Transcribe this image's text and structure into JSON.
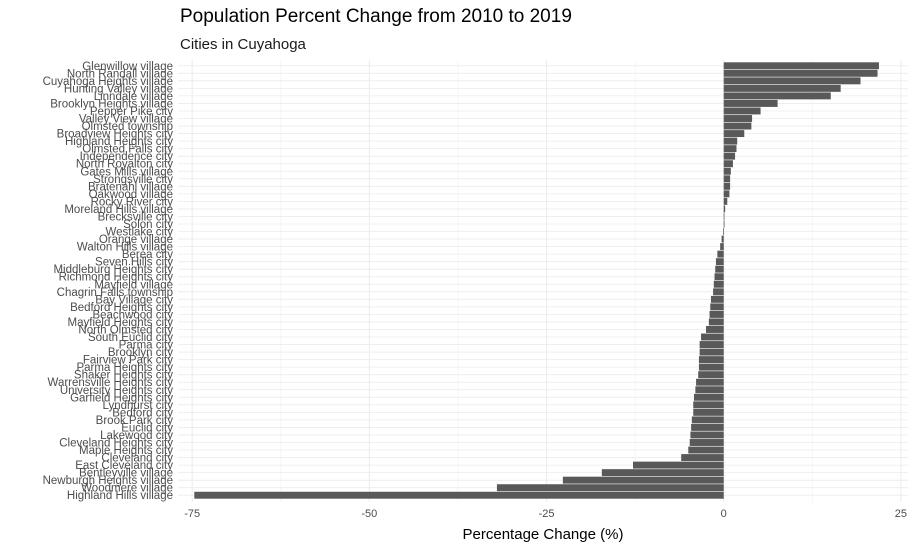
{
  "chart_data": {
    "type": "bar",
    "orientation": "horizontal",
    "title": "Population Percent Change from 2010 to 2019",
    "subtitle": "Cities in Cuyahoga",
    "xlabel": "Percentage Change (%)",
    "ylabel": "",
    "xlim": [
      -77,
      26
    ],
    "xticks": [
      -75,
      -50,
      -25,
      0,
      25
    ],
    "grid": true,
    "legend": "none",
    "bar_color": "#595959",
    "grid_color": "#ebebeb",
    "categories": [
      "Glenwillow village",
      "North Randall village",
      "Cuyahoga Heights village",
      "Hunting Valley village",
      "Linndale village",
      "Brooklyn Heights village",
      "Pepper Pike city",
      "Valley View village",
      "Olmsted township",
      "Broadview Heights city",
      "Highland Heights city",
      "Olmsted Falls city",
      "Independence city",
      "North Royalton city",
      "Gates Mills village",
      "Strongsville city",
      "Bratenahl village",
      "Oakwood village",
      "Rocky River city",
      "Moreland Hills village",
      "Brecksville city",
      "Solon city",
      "Westlake city",
      "Orange village",
      "Walton Hills village",
      "Berea city",
      "Seven Hills city",
      "Middleburg Heights city",
      "Richmond Heights city",
      "Mayfield village",
      "Chagrin Falls township",
      "Bay Village city",
      "Bedford Heights city",
      "Beachwood city",
      "Mayfield Heights city",
      "North Olmsted city",
      "South Euclid city",
      "Parma city",
      "Brooklyn city",
      "Fairview Park city",
      "Parma Heights city",
      "Shaker Heights city",
      "Warrensville Heights city",
      "University Heights city",
      "Garfield Heights city",
      "Lyndhurst city",
      "Bedford city",
      "Brook Park city",
      "Euclid city",
      "Lakewood city",
      "Cleveland Heights city",
      "Maple Heights city",
      "Cleveland city",
      "East Cleveland city",
      "Bentleyville village",
      "Newburgh Heights village",
      "Woodmere village",
      "Highland Hills village"
    ],
    "values": [
      21.9,
      21.7,
      19.3,
      16.5,
      15.1,
      7.6,
      5.2,
      4.0,
      3.9,
      2.9,
      1.9,
      1.8,
      1.6,
      1.3,
      1.0,
      0.9,
      0.9,
      0.8,
      0.5,
      0.2,
      0.1,
      0.0,
      -0.1,
      -0.3,
      -0.5,
      -0.9,
      -1.1,
      -1.2,
      -1.3,
      -1.4,
      -1.5,
      -1.8,
      -1.9,
      -2.0,
      -2.1,
      -2.5,
      -3.2,
      -3.4,
      -3.4,
      -3.5,
      -3.5,
      -3.6,
      -3.9,
      -4.0,
      -4.2,
      -4.3,
      -4.3,
      -4.5,
      -4.6,
      -4.7,
      -4.8,
      -5.0,
      -6.0,
      -12.8,
      -17.2,
      -22.7,
      -32.0,
      -74.7
    ]
  }
}
